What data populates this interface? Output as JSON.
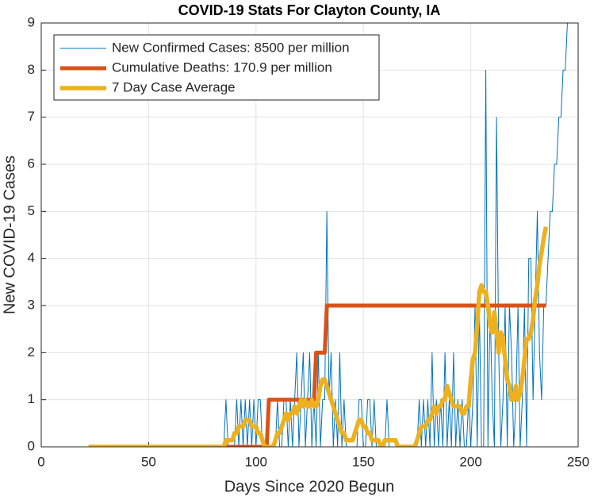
{
  "chart_data": {
    "type": "line",
    "title": "COVID-19 Stats For Clayton County, IA",
    "xlabel": "Days Since 2020 Begun",
    "ylabel": "New COVID-19 Cases",
    "xlim": [
      0,
      250
    ],
    "xticks": [
      0,
      50,
      100,
      150,
      200,
      250
    ],
    "ylim": [
      0,
      9
    ],
    "yticks": [
      0,
      1,
      2,
      3,
      4,
      5,
      6,
      7,
      8,
      9
    ],
    "grid": true,
    "legend": "northwest",
    "x": [
      22,
      23,
      24,
      25,
      26,
      27,
      28,
      29,
      30,
      31,
      32,
      33,
      34,
      35,
      36,
      37,
      38,
      39,
      40,
      41,
      42,
      43,
      44,
      45,
      46,
      47,
      48,
      49,
      50,
      51,
      52,
      53,
      54,
      55,
      56,
      57,
      58,
      59,
      60,
      61,
      62,
      63,
      64,
      65,
      66,
      67,
      68,
      69,
      70,
      71,
      72,
      73,
      74,
      75,
      76,
      77,
      78,
      79,
      80,
      81,
      82,
      83,
      84,
      85,
      86,
      87,
      88,
      89,
      90,
      91,
      92,
      93,
      94,
      95,
      96,
      97,
      98,
      99,
      100,
      101,
      102,
      103,
      104,
      105,
      106,
      107,
      108,
      109,
      110,
      111,
      112,
      113,
      114,
      115,
      116,
      117,
      118,
      119,
      120,
      121,
      122,
      123,
      124,
      125,
      126,
      127,
      128,
      129,
      130,
      131,
      132,
      133,
      134,
      135,
      136,
      137,
      138,
      139,
      140,
      141,
      142,
      143,
      144,
      145,
      146,
      147,
      148,
      149,
      150,
      151,
      152,
      153,
      154,
      155,
      156,
      157,
      158,
      159,
      160,
      161,
      162,
      163,
      164,
      165,
      166,
      167,
      168,
      169,
      170,
      171,
      172,
      173,
      174,
      175,
      176,
      177,
      178,
      179,
      180,
      181,
      182,
      183,
      184,
      185,
      186,
      187,
      188,
      189,
      190,
      191,
      192,
      193,
      194,
      195,
      196,
      197,
      198,
      199,
      200,
      201,
      202,
      203,
      204,
      205,
      206,
      207,
      208,
      209,
      210,
      211,
      212,
      213,
      214,
      215,
      216,
      217,
      218,
      219,
      220,
      221,
      222,
      223,
      224,
      225,
      226,
      227,
      228,
      229,
      230,
      231,
      232,
      233,
      234,
      235,
      236,
      237,
      238,
      239,
      240,
      241,
      242,
      243,
      244,
      245
    ],
    "series": [
      {
        "name": "New Confirmed Cases: 8500 per million",
        "color": "#0072bd",
        "width": 1,
        "values": [
          0,
          0,
          0,
          0,
          0,
          0,
          0,
          0,
          0,
          0,
          0,
          0,
          0,
          0,
          0,
          0,
          0,
          0,
          0,
          0,
          0,
          0,
          0,
          0,
          0,
          0,
          0,
          0,
          0,
          0,
          0,
          0,
          0,
          0,
          0,
          0,
          0,
          0,
          0,
          0,
          0,
          0,
          0,
          0,
          0,
          0,
          0,
          0,
          0,
          0,
          0,
          0,
          0,
          0,
          0,
          0,
          0,
          0,
          0,
          0,
          0,
          0,
          0,
          0,
          1,
          0,
          0,
          0,
          0,
          1,
          0,
          1,
          0,
          1,
          0,
          1,
          0,
          1,
          0,
          1,
          1,
          0,
          0,
          0,
          0,
          0,
          0,
          0,
          1,
          0,
          0,
          1,
          1,
          0,
          1,
          0,
          1,
          2,
          0,
          1,
          2,
          0,
          1,
          2,
          0,
          1,
          0,
          2,
          0,
          1,
          1,
          5,
          1,
          2,
          0,
          1,
          0,
          2,
          0,
          1,
          0,
          0,
          0,
          0,
          0,
          0,
          1,
          1,
          0,
          0,
          1,
          1,
          0,
          1,
          0,
          0,
          0,
          0,
          0,
          1,
          0,
          0,
          0,
          0,
          0,
          0,
          0,
          0,
          0,
          0,
          0,
          0,
          0,
          0,
          1,
          0,
          1,
          0,
          1,
          0,
          2,
          0,
          1,
          0,
          1,
          0,
          2,
          0,
          1,
          0,
          2,
          0,
          1,
          0,
          1,
          0,
          0,
          1,
          0,
          1,
          3,
          0,
          3,
          0,
          0,
          8,
          0,
          3,
          1,
          0,
          7,
          2,
          0,
          1,
          3,
          0,
          3,
          2,
          0,
          1,
          3,
          0,
          1,
          3,
          0,
          4,
          4,
          1,
          3,
          5,
          2,
          1,
          3,
          3,
          4,
          5,
          5,
          6,
          6,
          7,
          7,
          8,
          8,
          9
        ]
      },
      {
        "name": "Cumulative Deaths: 170.9 per million",
        "color": "#d95319",
        "width": 5,
        "values": [
          null,
          null,
          null,
          null,
          null,
          null,
          null,
          null,
          null,
          null,
          null,
          null,
          null,
          null,
          null,
          null,
          null,
          null,
          null,
          null,
          null,
          null,
          null,
          null,
          null,
          null,
          null,
          null,
          null,
          null,
          null,
          null,
          null,
          null,
          null,
          null,
          null,
          null,
          null,
          null,
          null,
          null,
          null,
          null,
          null,
          null,
          null,
          null,
          null,
          null,
          null,
          null,
          null,
          null,
          null,
          null,
          null,
          null,
          null,
          null,
          null,
          null,
          null,
          null,
          0,
          0,
          0,
          0,
          0,
          0,
          0,
          0,
          0,
          0,
          0,
          0,
          0,
          0,
          0,
          0,
          0,
          0,
          0,
          0,
          1,
          1,
          1,
          1,
          1,
          1,
          1,
          1,
          1,
          1,
          1,
          1,
          1,
          1,
          1,
          1,
          1,
          1,
          1,
          1,
          1,
          1,
          2,
          2,
          2,
          2,
          2,
          3,
          3,
          3,
          3,
          3,
          3,
          3,
          3,
          3,
          3,
          3,
          3,
          3,
          3,
          3,
          3,
          3,
          3,
          3,
          3,
          3,
          3,
          3,
          3,
          3,
          3,
          3,
          3,
          3,
          3,
          3,
          3,
          3,
          3,
          3,
          3,
          3,
          3,
          3,
          3,
          3,
          3,
          3,
          3,
          3,
          3,
          3,
          3,
          3,
          3,
          3,
          3,
          3,
          3,
          3,
          3,
          3,
          3,
          3,
          3,
          3,
          3,
          3,
          3,
          3,
          3,
          3,
          3,
          3,
          3,
          3,
          3,
          3,
          3,
          3,
          3,
          3,
          3,
          3,
          3,
          3,
          3,
          3,
          3,
          3,
          3,
          3,
          3,
          3,
          3,
          3,
          3,
          3,
          3,
          3,
          3,
          3,
          3,
          3,
          3,
          3,
          3,
          3,
          null,
          null,
          null,
          null,
          null,
          null,
          null,
          null,
          null,
          null
        ]
      },
      {
        "name": "7 Day Case Average",
        "color": "#edb120",
        "width": 5.5,
        "values": [
          0,
          0,
          0,
          0,
          0,
          0,
          0,
          0,
          0,
          0,
          0,
          0,
          0,
          0,
          0,
          0,
          0,
          0,
          0,
          0,
          0,
          0,
          0,
          0,
          0,
          0,
          0,
          0,
          0,
          0,
          0,
          0,
          0,
          0,
          0,
          0,
          0,
          0,
          0,
          0,
          0,
          0,
          0,
          0,
          0,
          0,
          0,
          0,
          0,
          0,
          0,
          0,
          0,
          0,
          0,
          0,
          0,
          0,
          0,
          0,
          0,
          0,
          0,
          0,
          0.14,
          0.14,
          0.14,
          0.14,
          0.29,
          0.29,
          0.43,
          0.43,
          0.43,
          0.57,
          0.57,
          0.57,
          0.43,
          0.43,
          0.43,
          0.29,
          0.29,
          0.14,
          0,
          0,
          0,
          0,
          0,
          0.14,
          0.29,
          0.29,
          0.43,
          0.57,
          0.71,
          0.57,
          0.71,
          0.71,
          0.86,
          0.71,
          0.86,
          1,
          0.86,
          1,
          0.86,
          0.86,
          1,
          0.86,
          0.86,
          1,
          1.29,
          1.43,
          1.43,
          1.29,
          1.14,
          1,
          0.86,
          0.71,
          0.57,
          0.43,
          0.29,
          0.29,
          0.14,
          0.14,
          0.14,
          0.14,
          0.29,
          0.43,
          0.57,
          0.57,
          0.43,
          0.43,
          0.29,
          0.29,
          0.14,
          0.14,
          0.14,
          0.14,
          0,
          0,
          0.14,
          0.14,
          0.14,
          0.14,
          0.14,
          0.14,
          0,
          0,
          0,
          0,
          0,
          0,
          0,
          0,
          0,
          0.14,
          0.29,
          0.43,
          0.43,
          0.43,
          0.57,
          0.57,
          0.71,
          0.86,
          0.71,
          0.86,
          0.86,
          1,
          1,
          1.29,
          1.14,
          1,
          0.86,
          0.86,
          0.86,
          0.86,
          0.71,
          0.71,
          0.86,
          0.86,
          1.43,
          1.86,
          2,
          2.57,
          3.29,
          3.43,
          3.29,
          3.29,
          3,
          2.57,
          2.43,
          2.86,
          2.43,
          2,
          2.43,
          2.29,
          1.86,
          1.43,
          1.29,
          1,
          1,
          1.29,
          1,
          1.14,
          1.43,
          1.86,
          2.29,
          2.29,
          2.43,
          2.71,
          3.14,
          3.43,
          3.86,
          4.14,
          4.43,
          4.67,
          null,
          null,
          null,
          null,
          null,
          null,
          null,
          null,
          null,
          null
        ]
      }
    ]
  }
}
